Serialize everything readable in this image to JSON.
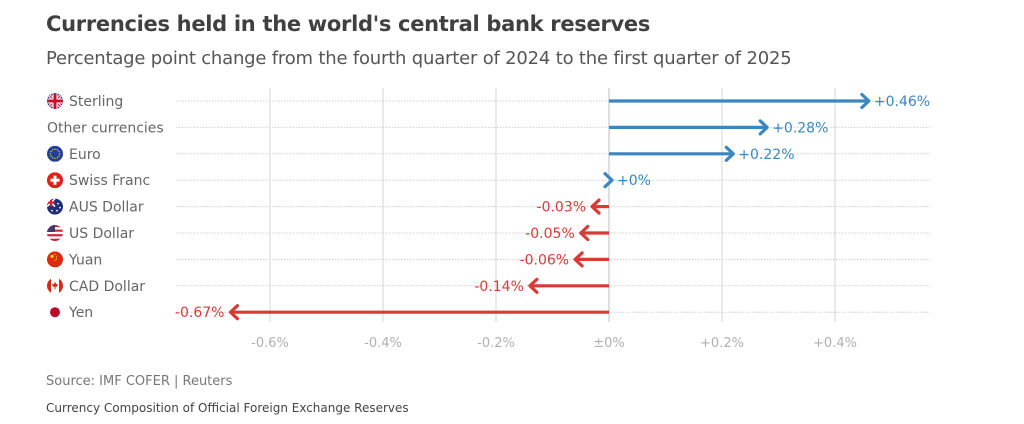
{
  "header": {
    "title": "Currencies held in the world's central bank reserves",
    "subtitle": "Percentage point change from the fourth quarter of 2024 to the first quarter of 2025"
  },
  "footer": {
    "source": "Source: IMF COFER | Reuters",
    "note": "Currency Composition of Official Foreign Exchange Reserves"
  },
  "colors": {
    "positive": "#3a87c0",
    "negative": "#d93a35",
    "label_text": "#666666",
    "tick_text": "#b0b0b0",
    "grid": "#dddddd"
  },
  "chart_data": {
    "type": "bar",
    "orientation": "horizontal",
    "mark": "arrow",
    "title": "Currencies held in the world's central bank reserves",
    "subtitle": "Percentage point change from the fourth quarter of 2024 to the first quarter of 2025",
    "xlabel": "",
    "ylabel": "",
    "xlim": [
      -0.75,
      0.55
    ],
    "grid": true,
    "categories": [
      "Sterling",
      "Other currencies",
      "Euro",
      "Swiss Franc",
      "AUS Dollar",
      "US Dollar",
      "Yuan",
      "CAD Dollar",
      "Yen"
    ],
    "icons": [
      "uk-flag-icon",
      "",
      "eu-flag-icon",
      "swiss-flag-icon",
      "australia-flag-icon",
      "us-flag-icon",
      "china-flag-icon",
      "canada-flag-icon",
      "japan-flag-icon"
    ],
    "values": [
      0.46,
      0.28,
      0.22,
      0.0,
      -0.03,
      -0.05,
      -0.06,
      -0.14,
      -0.67
    ],
    "value_labels": [
      "+0.46%",
      "+0.28%",
      "+0.22%",
      "+0%",
      "-0.03%",
      "-0.05%",
      "-0.06%",
      "-0.14%",
      "-0.67%"
    ],
    "x_ticks": [
      -0.6,
      -0.4,
      -0.2,
      0,
      0.2,
      0.4
    ],
    "x_tick_labels": [
      "-0.6%",
      "-0.4%",
      "-0.2%",
      "±0%",
      "+0.2%",
      "+0.4%"
    ]
  }
}
